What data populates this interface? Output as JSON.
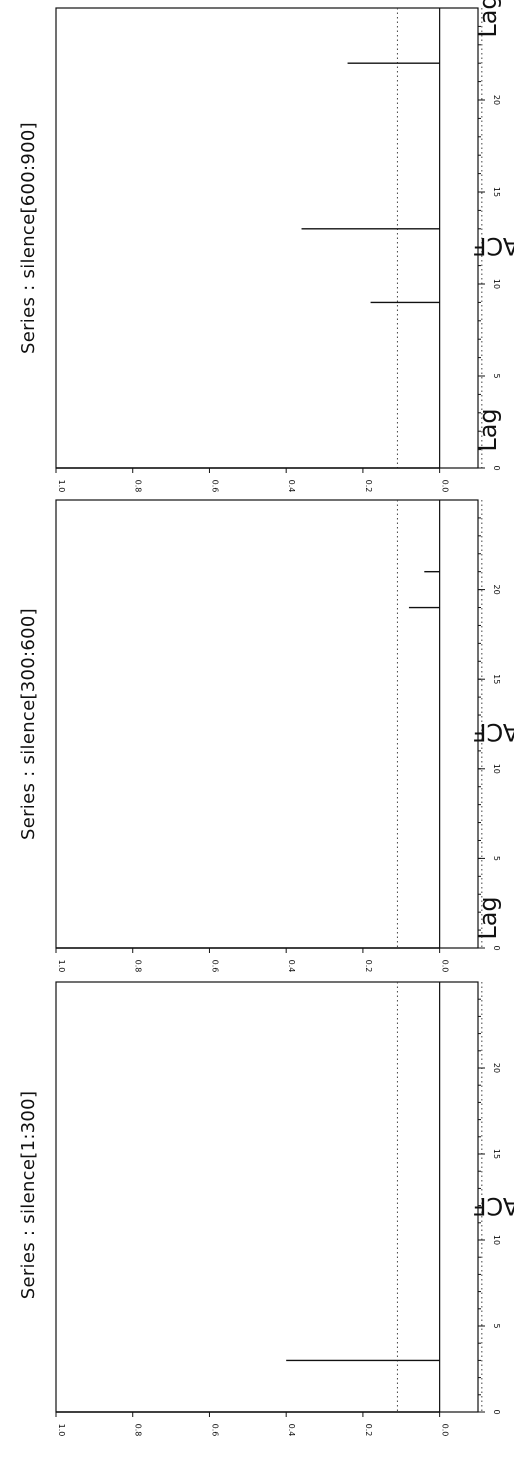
{
  "chart_data": [
    {
      "type": "bar",
      "title": "Series : silence[1:300]",
      "xlabel": "Lag",
      "ylabel": "ACF",
      "xlim": [
        0,
        25
      ],
      "ylim": [
        -0.1,
        1.0
      ],
      "xticks": [
        "0",
        "5",
        "10",
        "15",
        "20"
      ],
      "yticks": [
        "0.0",
        "0.2",
        "0.4",
        "0.6",
        "0.8",
        "1.0"
      ],
      "confidence_band": [
        -0.11,
        0.11
      ],
      "x": [
        0,
        1,
        2,
        3,
        4,
        5,
        6,
        7,
        8,
        9,
        10,
        11,
        12,
        13,
        14,
        15,
        16,
        17,
        18,
        19,
        20,
        21,
        22,
        23,
        24
      ],
      "values": [
        1.0,
        0.0,
        0.0,
        0.4,
        0.0,
        0.0,
        0.0,
        0.0,
        0.0,
        0.0,
        0.0,
        0.0,
        0.0,
        0.0,
        0.0,
        0.0,
        0.0,
        0.0,
        0.0,
        0.0,
        0.0,
        0.0,
        0.0,
        0.0,
        0.0
      ]
    },
    {
      "type": "bar",
      "title": "Series : silence[300:600]",
      "xlabel": "Lag",
      "ylabel": "ACF",
      "xlim": [
        0,
        25
      ],
      "ylim": [
        -0.1,
        1.0
      ],
      "xticks": [
        "0",
        "5",
        "10",
        "15",
        "20"
      ],
      "yticks": [
        "0.0",
        "0.2",
        "0.4",
        "0.6",
        "0.8",
        "1.0"
      ],
      "confidence_band": [
        -0.11,
        0.11
      ],
      "x": [
        0,
        1,
        2,
        3,
        4,
        5,
        6,
        7,
        8,
        9,
        10,
        11,
        12,
        13,
        14,
        15,
        16,
        17,
        18,
        19,
        20,
        21,
        22,
        23,
        24
      ],
      "values": [
        1.0,
        0.0,
        0.0,
        0.0,
        0.0,
        0.0,
        0.0,
        0.0,
        0.0,
        0.0,
        0.0,
        0.0,
        0.0,
        0.0,
        0.0,
        0.0,
        0.0,
        0.0,
        0.0,
        0.08,
        0.0,
        0.04,
        0.0,
        0.0,
        0.0
      ]
    },
    {
      "type": "bar",
      "title": "Series : silence[600:900]",
      "xlabel": "Lag",
      "ylabel": "ACF",
      "xlim": [
        0,
        25
      ],
      "ylim": [
        -0.1,
        1.0
      ],
      "xticks": [
        "0",
        "5",
        "10",
        "15",
        "20"
      ],
      "yticks": [
        "0.0",
        "0.2",
        "0.4",
        "0.6",
        "0.8",
        "1.0"
      ],
      "confidence_band": [
        -0.11,
        0.11
      ],
      "x": [
        0,
        1,
        2,
        3,
        4,
        5,
        6,
        7,
        8,
        9,
        10,
        11,
        12,
        13,
        14,
        15,
        16,
        17,
        18,
        19,
        20,
        21,
        22,
        23,
        24
      ],
      "values": [
        1.0,
        0.0,
        0.0,
        0.0,
        0.0,
        0.0,
        0.0,
        0.0,
        0.0,
        0.18,
        0.0,
        0.0,
        0.0,
        0.36,
        0.0,
        0.0,
        0.0,
        0.0,
        0.0,
        0.0,
        0.0,
        0.0,
        0.24,
        0.0,
        0.0
      ]
    }
  ]
}
